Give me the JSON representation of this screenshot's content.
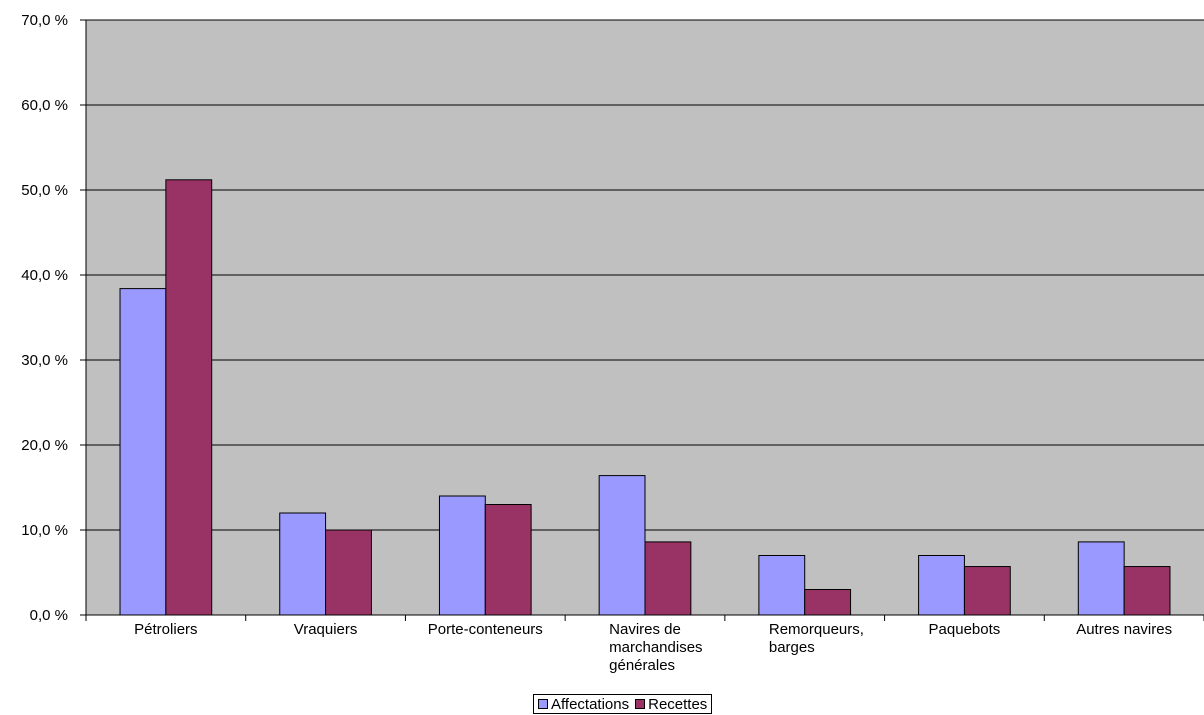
{
  "chart_data": {
    "type": "bar",
    "categories": [
      [
        "Pétroliers"
      ],
      [
        "Vraquiers"
      ],
      [
        "Porte-conteneurs"
      ],
      [
        "Navires de",
        "marchandises",
        "générales"
      ],
      [
        "Remorqueurs,",
        "barges"
      ],
      [
        "Paquebots"
      ],
      [
        "Autres navires"
      ]
    ],
    "series": [
      {
        "name": "Affectations",
        "color": "#9999ff",
        "values": [
          38.4,
          12.0,
          14.0,
          16.4,
          7.0,
          7.0,
          8.6
        ]
      },
      {
        "name": "Recettes",
        "color": "#993366",
        "values": [
          51.2,
          10.0,
          13.0,
          8.6,
          3.0,
          5.7,
          5.7
        ]
      }
    ],
    "ylim": [
      0,
      70
    ],
    "yticks": [
      "0,0 %",
      "10,0 %",
      "20,0 %",
      "30,0 %",
      "40,0 %",
      "50,0 %",
      "60,0 %",
      "70,0 %"
    ],
    "ytick_values": [
      0,
      10,
      20,
      30,
      40,
      50,
      60,
      70
    ],
    "plot_background": "#c0c0c0",
    "grid": true,
    "legend_position": "bottom",
    "xlabel": "",
    "ylabel": "",
    "title": ""
  }
}
